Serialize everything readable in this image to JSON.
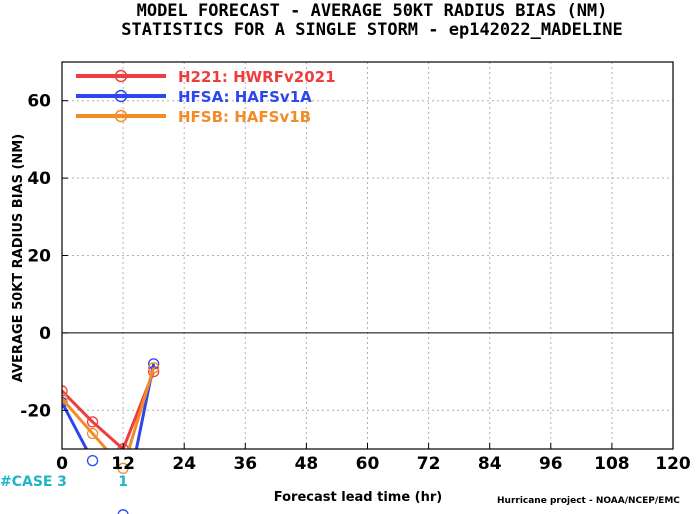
{
  "chart_data": {
    "type": "line",
    "title": "MODEL FORECAST - AVERAGE 50KT RADIUS BIAS (NM)",
    "subtitle": "STATISTICS FOR A SINGLE STORM - ep142022_MADELINE",
    "xlabel": "Forecast lead time (hr)",
    "ylabel": "AVERAGE 50KT RADIUS BIAS (NM)",
    "xlim": [
      0,
      120
    ],
    "ylim": [
      -30,
      70
    ],
    "xticks": [
      0,
      12,
      24,
      36,
      48,
      60,
      72,
      84,
      96,
      108,
      120
    ],
    "yticks": [
      -20,
      0,
      20,
      40,
      60
    ],
    "grid": true,
    "legend_position": "top-left",
    "zero_line": 0,
    "series": [
      {
        "name": "H221: HWRFv2021",
        "color": "#f03c3c",
        "x": [
          0,
          6,
          12,
          18
        ],
        "y": [
          -15,
          -23,
          -30,
          -10
        ]
      },
      {
        "name": "HFSA: HAFSv1A",
        "color": "#2d46ee",
        "x": [
          0,
          6,
          12,
          18
        ],
        "y": [
          -18,
          -33,
          -47,
          -8
        ]
      },
      {
        "name": "HFSB: HAFSv1B",
        "color": "#f28c28",
        "x": [
          0,
          6,
          12,
          18
        ],
        "y": [
          -17,
          -26,
          -35,
          -9
        ]
      }
    ],
    "case_counts": {
      "label": "#CASE",
      "entries": [
        {
          "x": 0,
          "value": "3"
        },
        {
          "x": 12,
          "value": "1"
        }
      ]
    },
    "credit": "Hurricane project - NOAA/NCEP/EMC"
  }
}
